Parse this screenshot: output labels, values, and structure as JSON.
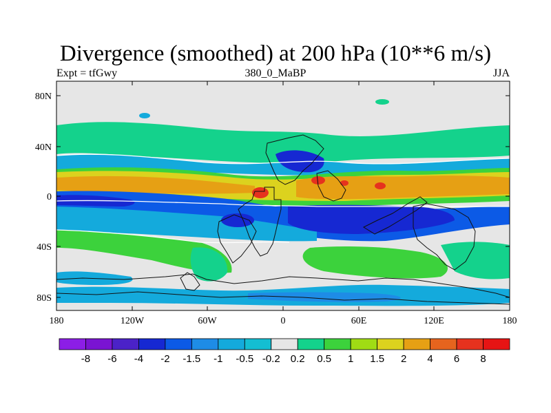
{
  "title": "Divergence (smoothed) at 200 hPa (10**6 m/s)",
  "subtitle_left": "Expt = tfGwy",
  "subtitle_center": "380_0_MaBP",
  "subtitle_right": "JJA",
  "lat_labels": [
    "80N",
    "40N",
    "0",
    "40S",
    "80S"
  ],
  "lon_labels": [
    "180",
    "120W",
    "60W",
    "0",
    "60E",
    "120E",
    "180"
  ],
  "colorbar": {
    "labels": [
      "-8",
      "-6",
      "-4",
      "-2",
      "-1.5",
      "-1",
      "-0.5",
      "-0.2",
      "0.2",
      "0.5",
      "1",
      "1.5",
      "2",
      "4",
      "6",
      "8"
    ],
    "colors": [
      "#8c1ee6",
      "#7a14d2",
      "#4b22c8",
      "#1628d2",
      "#0c5ae6",
      "#1e8ce6",
      "#14aadc",
      "#14bed2",
      "#e6e6e6",
      "#14d28c",
      "#3cd23c",
      "#a0dc14",
      "#dcd21e",
      "#e6a014",
      "#e6641e",
      "#e6321e",
      "#e61414"
    ]
  },
  "colors": {
    "background": "#e6e6e6",
    "strong_neg": "#1628d2",
    "neg": "#0c5ae6",
    "weak_neg": "#14aadc",
    "weak_pos": "#14d28c",
    "pos": "#3cd23c",
    "strong_pos": "#e6a014",
    "max_pos": "#e6321e"
  }
}
